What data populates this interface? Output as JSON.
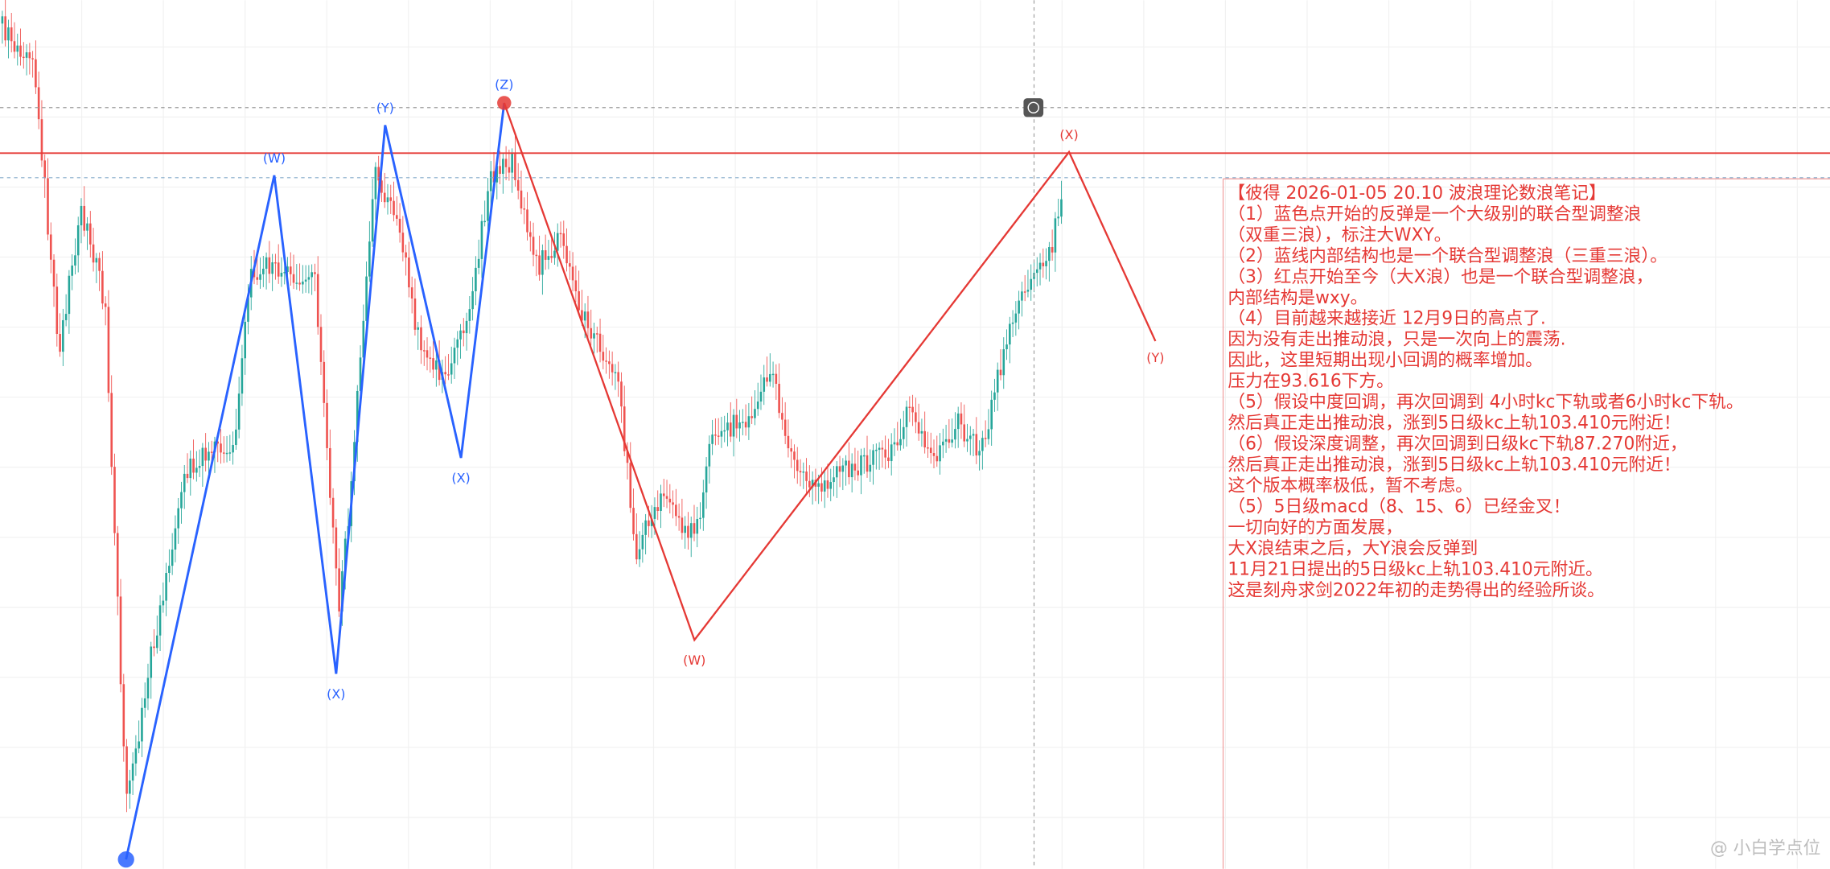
{
  "wave_labels": [
    {
      "text": "(W)",
      "color": "#2962ff"
    },
    {
      "text": "(X)",
      "color": "#2962ff"
    },
    {
      "text": "(Y)",
      "color": "#2962ff"
    },
    {
      "text": "(X)",
      "color": "#2962ff"
    },
    {
      "text": "(Z)",
      "color": "#2962ff"
    },
    {
      "text": "(W)",
      "color": "#e53935"
    },
    {
      "text": "(X)",
      "color": "#e53935"
    },
    {
      "text": "(Y)",
      "color": "#e53935"
    }
  ],
  "note": {
    "color": "#e53935",
    "lines": [
      "【彼得 2026-01-05 20.10 波浪理论数浪笔记】",
      "（1）蓝色点开始的反弹是一个大级别的联合型调整浪",
      "（双重三浪），标注大WXY。",
      "（2）蓝线内部结构也是一个联合型调整浪（三重三浪）。",
      "（3）红点开始至今（大X浪）也是一个联合型调整浪，",
      "内部结构是wxy。",
      "（4）目前越来越接近 12月9日的高点了.",
      "因为没有走出推动浪，只是一次向上的震荡.",
      "因此，这里短期出现小回调的概率增加。",
      "压力在93.616下方。",
      "（5）假设中度回调，再次回调到 4小时kc下轨或者6小时kc下轨。",
      "然后真正走出推动浪，涨到5日级kc上轨103.410元附近！",
      "（6）假设深度调整，再次回调到日级kc下轨87.270附近，",
      "然后真正走出推动浪，涨到5日级kc上轨103.410元附近！",
      "这个版本概率极低，暂不考虑。",
      "（5）5日级macd（8、15、6）已经金叉！",
      "一切向好的方面发展，",
      "大X浪结束之后，大Y浪会反弹到",
      "11月21日提出的5日级kc上轨103.410元附近。",
      "这是刻舟求剑2022年初的走势得出的经验所谈。"
    ]
  },
  "watermark": "@ 小白学点位"
}
